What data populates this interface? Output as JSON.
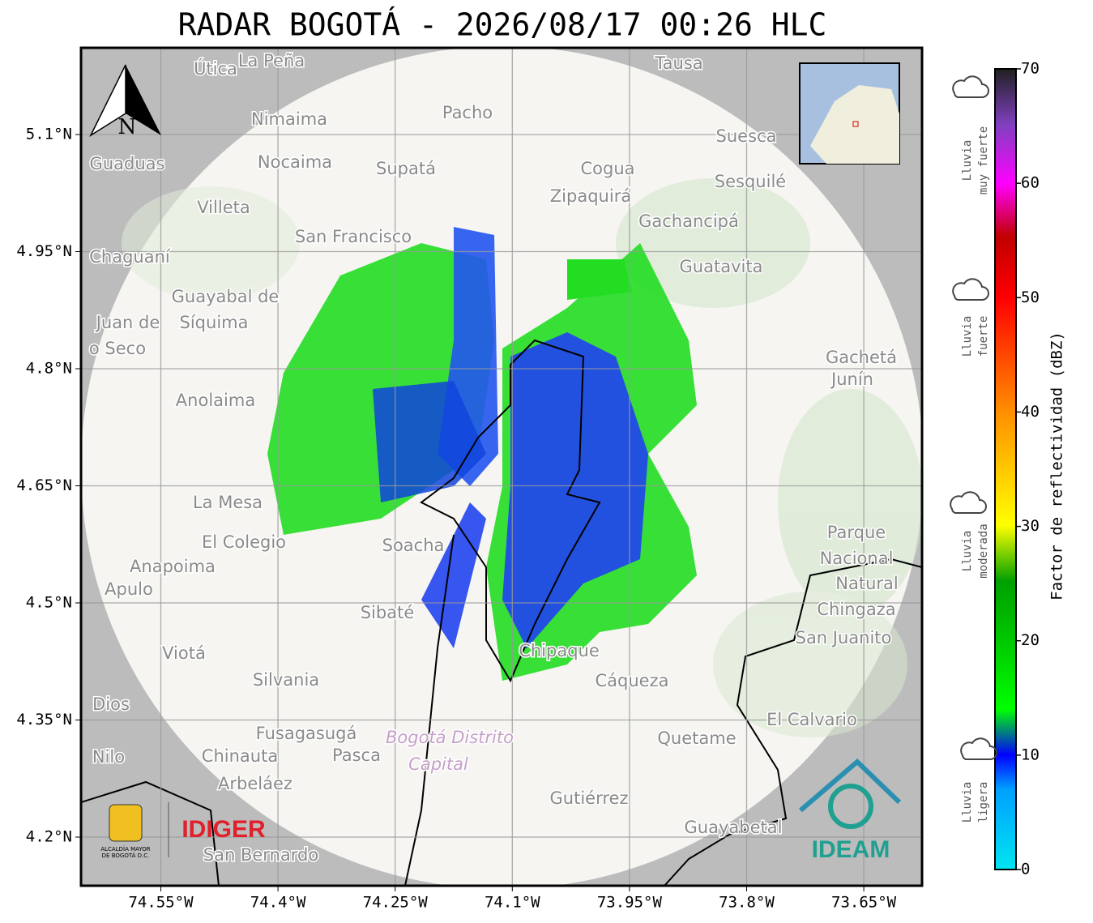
{
  "title": "RADAR BOGOTÁ - 2026/08/17 00:26 HLC",
  "map": {
    "x_tick_labels": [
      "74.55°W",
      "74.4°W",
      "74.25°W",
      "74.1°W",
      "73.95°W",
      "73.8°W",
      "73.65°W"
    ],
    "y_tick_labels": [
      "5.1°N",
      "4.95°N",
      "4.8°N",
      "4.65°N",
      "4.5°N",
      "4.35°N",
      "4.2°N"
    ],
    "north_label": "N",
    "places": [
      "Útica",
      "La Peña",
      "Tausa",
      "Pacho",
      "Nimaima",
      "Guaduas",
      "Nocaima",
      "Supatá",
      "Cogua",
      "Suesca",
      "Sesquilé",
      "Zipaquirá",
      "Villeta",
      "Gachancipá",
      "San Francisco",
      "Chaguaní",
      "Guatavita",
      "Guayabal de",
      "Síquima",
      "Juan de",
      "o Seco",
      "Gachetá",
      "Junín",
      "Anolaima",
      "La Mesa",
      "El Colegio",
      "Soacha",
      "Parque",
      "Nacional",
      "Natural",
      "Chingaza",
      "Anapoima",
      "Apulo",
      "Sibaté",
      "San Juanito",
      "Viotá",
      "Chipaque",
      "Silvania",
      "Cáqueza",
      "Dios",
      "El Calvario",
      "Fusagasugá",
      "Quetame",
      "Nilo",
      "Chinauta",
      "Pasca",
      "Arbeláez",
      "Gutiérrez",
      "Guayabetal",
      "San Bernardo"
    ],
    "purple_places": [
      "Bogotá Distrito",
      "Capital"
    ],
    "logos": {
      "alcaldia_1": "ALCALDÍA MAYOR",
      "alcaldia_2": "DE BOGOTÁ D.C.",
      "idiger": "IDIGER",
      "ideam": "IDEAM"
    }
  },
  "colorbar": {
    "label": "Factor de reflectividad (dBZ)",
    "ticks": [
      0,
      10,
      20,
      30,
      40,
      50,
      60,
      70
    ],
    "categories": [
      [
        "Lluvia",
        "muy fuerte"
      ],
      [
        "Lluvia",
        "fuerte"
      ],
      [
        "Lluvia",
        "moderada"
      ],
      [
        "Lluvia",
        "ligera"
      ]
    ]
  }
}
